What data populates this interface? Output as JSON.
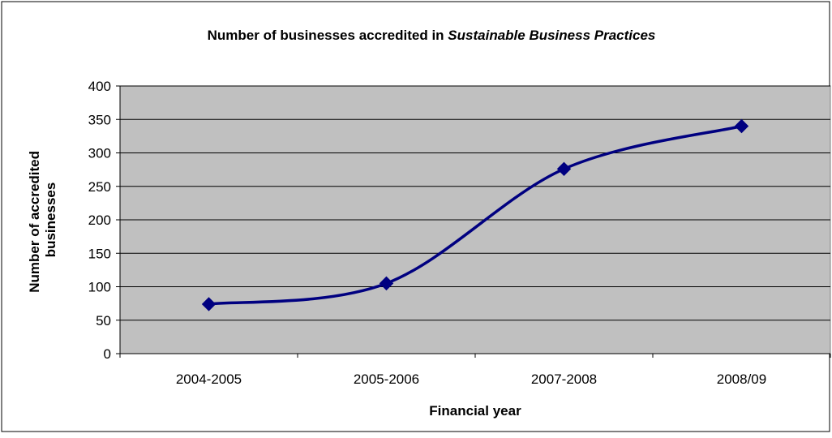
{
  "chart_data": {
    "type": "line",
    "title_main": "Number of businesses accredited in ",
    "title_emphasis": "Sustainable Business Practices",
    "xlabel": "Financial year",
    "ylabel_line1": "Number of accredited",
    "ylabel_line2": "businesses",
    "categories": [
      "2004-2005",
      "2005-2006",
      "2007-2008",
      "2008/09"
    ],
    "values": [
      74,
      105,
      276,
      340
    ],
    "ylim": [
      0,
      400
    ],
    "yticks": [
      0,
      50,
      100,
      150,
      200,
      250,
      300,
      350,
      400
    ],
    "smooth": true,
    "grid": true,
    "legend": "none",
    "colors": {
      "plot_area": "#c0c0c0",
      "series": "#000080",
      "grid": "#000000",
      "frame": "#000000"
    }
  }
}
